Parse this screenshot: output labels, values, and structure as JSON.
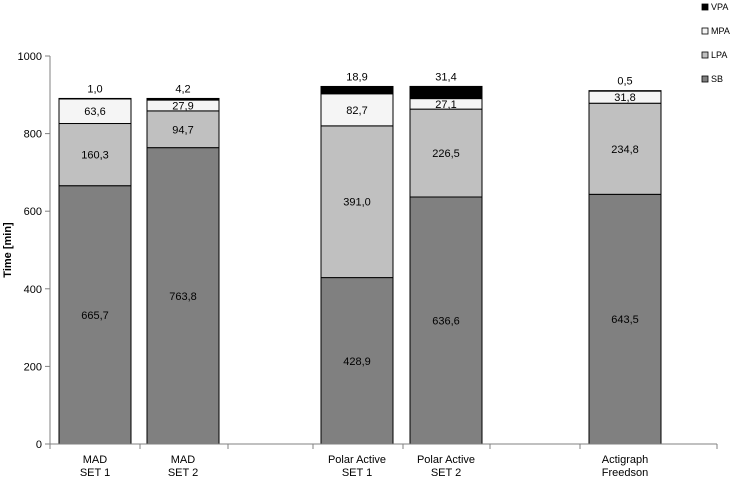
{
  "chart_data": {
    "type": "bar",
    "stacked": true,
    "ylabel": "Time [min]",
    "ylim": [
      0,
      1000
    ],
    "yticks": [
      0,
      200,
      400,
      600,
      800,
      1000
    ],
    "grid": false,
    "legend_position": "top-right",
    "categories": [
      [
        "MAD",
        "SET 1"
      ],
      [
        "MAD",
        "SET 2"
      ],
      [
        "Polar Active",
        "SET 1"
      ],
      [
        "Polar Active",
        "SET 2"
      ],
      [
        "Actigraph",
        "Freedson"
      ]
    ],
    "series": [
      {
        "name": "SB",
        "color": "#808080",
        "values": [
          665.7,
          763.8,
          428.9,
          636.6,
          643.5
        ],
        "labels": [
          "665,7",
          "763,8",
          "428,9",
          "636,6",
          "643,5"
        ]
      },
      {
        "name": "LPA",
        "color": "#c0c0c0",
        "values": [
          160.3,
          94.7,
          391.0,
          226.5,
          234.8
        ],
        "labels": [
          "160,3",
          "94,7",
          "391,0",
          "226,5",
          "234,8"
        ]
      },
      {
        "name": "MPA",
        "color": "#f5f5f5",
        "values": [
          63.6,
          27.9,
          82.7,
          27.1,
          31.8
        ],
        "labels": [
          "63,6",
          "27,9",
          "82,7",
          "27,1",
          "31,8"
        ]
      },
      {
        "name": "VPA",
        "color": "#000000",
        "values": [
          1.0,
          4.2,
          18.9,
          31.4,
          0.5
        ],
        "labels": [
          "1,0",
          "4,2",
          "18,9",
          "31,4",
          "0,5"
        ]
      }
    ],
    "legend_order": [
      "VPA",
      "MPA",
      "LPA",
      "SB"
    ]
  }
}
